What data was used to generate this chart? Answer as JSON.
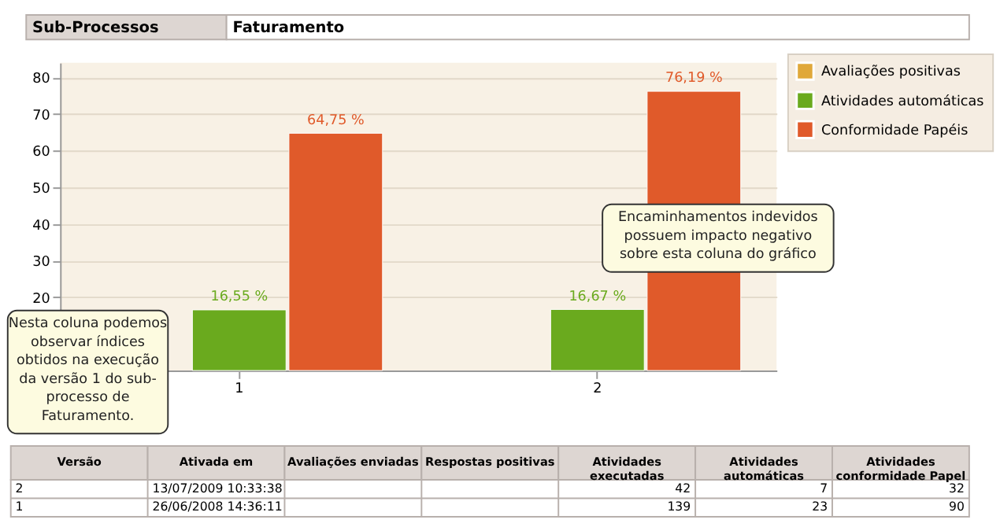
{
  "chart_data": [
    {
      "type": "bar",
      "title": "Sub-Processos",
      "subtitle": "Faturamento",
      "categories": [
        "1",
        "2"
      ],
      "series": [
        {
          "name": "Avaliações positivas",
          "color": "#e0a83a",
          "values": [
            null,
            null
          ]
        },
        {
          "name": "Atividades automáticas",
          "color": "#6aaa1e",
          "values": [
            16.55,
            16.67
          ],
          "value_labels": [
            "16,55 %",
            "16,67 %"
          ]
        },
        {
          "name": "Conformidade Papéis",
          "color": "#e05a2a",
          "values": [
            64.75,
            76.19
          ],
          "value_labels": [
            "64,75 %",
            "76,19 %"
          ]
        }
      ],
      "ylim": [
        0,
        84
      ],
      "yticks": [
        20,
        30,
        40,
        50,
        60,
        70,
        80
      ],
      "grid": "y",
      "legend": "top right",
      "annotations": [
        "Nesta coluna podemos observar índices obtidos na execução da versão 1 do sub-processo de Faturamento.",
        "Encaminhamentos indevidos possuem impacto negativo sobre esta coluna do gráfico"
      ]
    },
    {
      "type": "other",
      "categories": [
        "Versão",
        "Ativada em",
        "Avaliações enviadas",
        "Respostas positivas",
        "Atividades\nexecutadas",
        "Atividades\nautomáticas",
        "Atividades\nconformidade Papel"
      ],
      "cell_labels": [
        [
          "2",
          "13/07/2009 10:33:38",
          null,
          null,
          "42",
          "7",
          "32"
        ],
        [
          "1",
          "26/06/2008 14:36:11",
          null,
          null,
          "139",
          "23",
          "90"
        ]
      ]
    }
  ]
}
